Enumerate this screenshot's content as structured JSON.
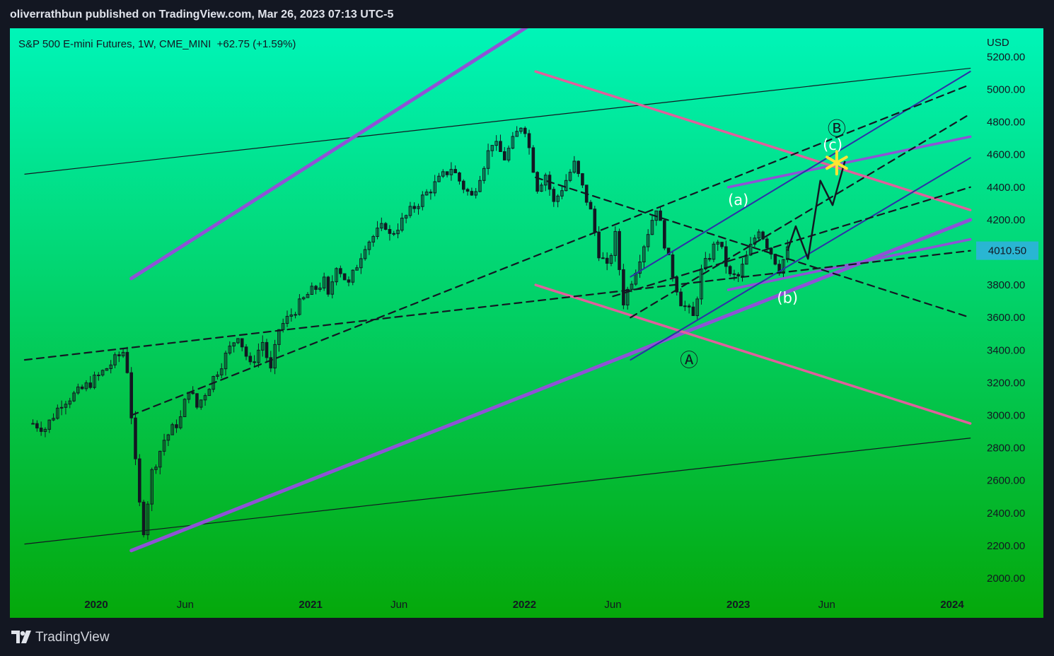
{
  "header": {
    "publisher_line": "oliverrathbun published on TradingView.com, Mar 26, 2023 07:13 UTC-5"
  },
  "legend": {
    "symbol": "S&P 500 E-mini Futures, 1W, CME_MINI",
    "change": "+62.75 (+1.59%)"
  },
  "footer": {
    "brand": "TradingView"
  },
  "colors": {
    "bg_top": "#00f5b8",
    "bg_bottom": "#05a80a",
    "purple": "#8f52d6",
    "pink": "#e0609c",
    "blue": "#2e2fa8",
    "price_tag": "#29b6d3",
    "star": "#ffe533"
  },
  "chart_data": {
    "type": "candlestick",
    "currency": "USD",
    "last_price": 4010.5,
    "last_price_label": "4010.50",
    "y_ticks": [
      2000,
      2200,
      2400,
      2600,
      2800,
      3000,
      3200,
      3400,
      3600,
      3800,
      4000,
      4200,
      4400,
      4600,
      4800,
      5000,
      5200
    ],
    "y_tick_labels": [
      "2000.00",
      "2200.00",
      "2400.00",
      "2600.00",
      "2800.00",
      "3000.00",
      "3200.00",
      "3400.00",
      "3600.00",
      "3800.00",
      "4000.00",
      "4200.00",
      "4400.00",
      "4600.00",
      "4800.00",
      "5000.00",
      "5200.00"
    ],
    "x_ticks": [
      {
        "label": "2020",
        "date": "2020-01-01",
        "bold": true
      },
      {
        "label": "Jun",
        "date": "2020-06-01",
        "bold": false
      },
      {
        "label": "2021",
        "date": "2021-01-01",
        "bold": true
      },
      {
        "label": "Jun",
        "date": "2021-06-01",
        "bold": false
      },
      {
        "label": "2022",
        "date": "2022-01-01",
        "bold": true
      },
      {
        "label": "Jun",
        "date": "2022-06-01",
        "bold": false
      },
      {
        "label": "2023",
        "date": "2023-01-01",
        "bold": true
      },
      {
        "label": "Jun",
        "date": "2023-06-01",
        "bold": false
      },
      {
        "label": "2024",
        "date": "2024-01-01",
        "bold": true
      }
    ],
    "price_path": [
      [
        "2019-09-15",
        2950
      ],
      [
        "2019-10-06",
        2920
      ],
      [
        "2019-11-03",
        3080
      ],
      [
        "2019-12-01",
        3140
      ],
      [
        "2020-01-05",
        3240
      ],
      [
        "2020-02-16",
        3390
      ],
      [
        "2020-02-23",
        3280
      ],
      [
        "2020-03-01",
        3000
      ],
      [
        "2020-03-08",
        2700
      ],
      [
        "2020-03-15",
        2450
      ],
      [
        "2020-03-22",
        2300
      ],
      [
        "2020-04-05",
        2650
      ],
      [
        "2020-04-26",
        2850
      ],
      [
        "2020-05-24",
        2980
      ],
      [
        "2020-06-07",
        3170
      ],
      [
        "2020-06-21",
        3050
      ],
      [
        "2020-07-19",
        3230
      ],
      [
        "2020-08-30",
        3500
      ],
      [
        "2020-09-20",
        3300
      ],
      [
        "2020-10-11",
        3450
      ],
      [
        "2020-10-25",
        3270
      ],
      [
        "2020-11-08",
        3530
      ],
      [
        "2020-12-27",
        3740
      ],
      [
        "2021-01-24",
        3820
      ],
      [
        "2021-01-31",
        3720
      ],
      [
        "2021-02-14",
        3930
      ],
      [
        "2021-03-07",
        3800
      ],
      [
        "2021-04-04",
        4050
      ],
      [
        "2021-05-09",
        4170
      ],
      [
        "2021-05-16",
        4100
      ],
      [
        "2021-06-27",
        4280
      ],
      [
        "2021-07-25",
        4390
      ],
      [
        "2021-08-29",
        4520
      ],
      [
        "2021-09-19",
        4400
      ],
      [
        "2021-10-03",
        4340
      ],
      [
        "2021-11-07",
        4680
      ],
      [
        "2021-11-28",
        4580
      ],
      [
        "2021-12-26",
        4780
      ],
      [
        "2022-01-02",
        4760
      ],
      [
        "2022-01-23",
        4400
      ],
      [
        "2022-02-06",
        4480
      ],
      [
        "2022-02-20",
        4300
      ],
      [
        "2022-03-27",
        4540
      ],
      [
        "2022-04-24",
        4250
      ],
      [
        "2022-05-08",
        4000
      ],
      [
        "2022-05-22",
        3900
      ],
      [
        "2022-06-05",
        4100
      ],
      [
        "2022-06-19",
        3700
      ],
      [
        "2022-07-10",
        3900
      ],
      [
        "2022-08-14",
        4280
      ],
      [
        "2022-09-04",
        3950
      ],
      [
        "2022-09-25",
        3700
      ],
      [
        "2022-10-16",
        3600
      ],
      [
        "2022-10-30",
        3880
      ],
      [
        "2022-11-27",
        4080
      ],
      [
        "2022-12-18",
        3850
      ],
      [
        "2023-01-01",
        3850
      ],
      [
        "2023-02-05",
        4150
      ],
      [
        "2023-03-12",
        3900
      ],
      [
        "2023-03-26",
        4010
      ]
    ],
    "projection_path": [
      [
        "2023-03-26",
        4010
      ],
      [
        "2023-04-09",
        4160
      ],
      [
        "2023-04-30",
        3960
      ],
      [
        "2023-05-21",
        4440
      ],
      [
        "2023-06-11",
        4290
      ],
      [
        "2023-07-02",
        4560
      ]
    ],
    "wave_labels": [
      {
        "text": "Ⓐ",
        "date": "2022-10-09",
        "price": 3330,
        "color": "#131722"
      },
      {
        "text": "Ⓑ",
        "date": "2023-06-18",
        "price": 4750,
        "color": "#131722"
      },
      {
        "text": "(a)",
        "date": "2023-01-01",
        "price": 4320,
        "color": "#ffffff"
      },
      {
        "text": "(b)",
        "date": "2023-03-26",
        "price": 3720,
        "color": "#ffffff"
      },
      {
        "text": "(c)",
        "date": "2023-06-11",
        "price": 4660,
        "color": "#ffffff"
      }
    ],
    "trendlines": [
      {
        "style": "black-thin",
        "from": [
          "2019-09-01",
          4480
        ],
        "to": [
          "2024-02-01",
          5130
        ]
      },
      {
        "style": "black-thin",
        "from": [
          "2019-09-01",
          2210
        ],
        "to": [
          "2024-02-01",
          2860
        ]
      },
      {
        "style": "purple-thick",
        "from": [
          "2020-03-01",
          3840
        ],
        "to": [
          "2022-03-15",
          5540
        ]
      },
      {
        "style": "purple-thick",
        "from": [
          "2020-03-01",
          2170
        ],
        "to": [
          "2024-02-01",
          4200
        ]
      },
      {
        "style": "purple",
        "from": [
          "2022-12-15",
          4400
        ],
        "to": [
          "2024-02-01",
          4710
        ]
      },
      {
        "style": "purple",
        "from": [
          "2022-12-15",
          3770
        ],
        "to": [
          "2024-02-01",
          4080
        ]
      },
      {
        "style": "pink",
        "from": [
          "2022-01-20",
          5110
        ],
        "to": [
          "2024-02-01",
          4260
        ]
      },
      {
        "style": "pink",
        "from": [
          "2022-01-20",
          3800
        ],
        "to": [
          "2024-02-01",
          2950
        ]
      },
      {
        "style": "blue",
        "from": [
          "2022-07-01",
          3850
        ],
        "to": [
          "2024-02-01",
          5110
        ]
      },
      {
        "style": "blue",
        "from": [
          "2022-07-01",
          3340
        ],
        "to": [
          "2024-02-01",
          4580
        ]
      },
      {
        "style": "black-dashed",
        "from": [
          "2019-09-01",
          3340
        ],
        "to": [
          "2024-02-01",
          4010
        ]
      },
      {
        "style": "black-dashed",
        "from": [
          "2020-03-01",
          3000
        ],
        "to": [
          "2024-02-01",
          5030
        ]
      },
      {
        "style": "black-dashed",
        "from": [
          "2022-01-20",
          4460
        ],
        "to": [
          "2024-02-01",
          3600
        ]
      },
      {
        "style": "black-dashed",
        "from": [
          "2022-07-01",
          3600
        ],
        "to": [
          "2024-02-01",
          4850
        ]
      },
      {
        "style": "black-dashed",
        "from": [
          "2022-06-01",
          3730
        ],
        "to": [
          "2024-02-01",
          4400
        ]
      }
    ],
    "marker": {
      "type": "star",
      "date": "2023-06-18",
      "price": 4550
    }
  }
}
